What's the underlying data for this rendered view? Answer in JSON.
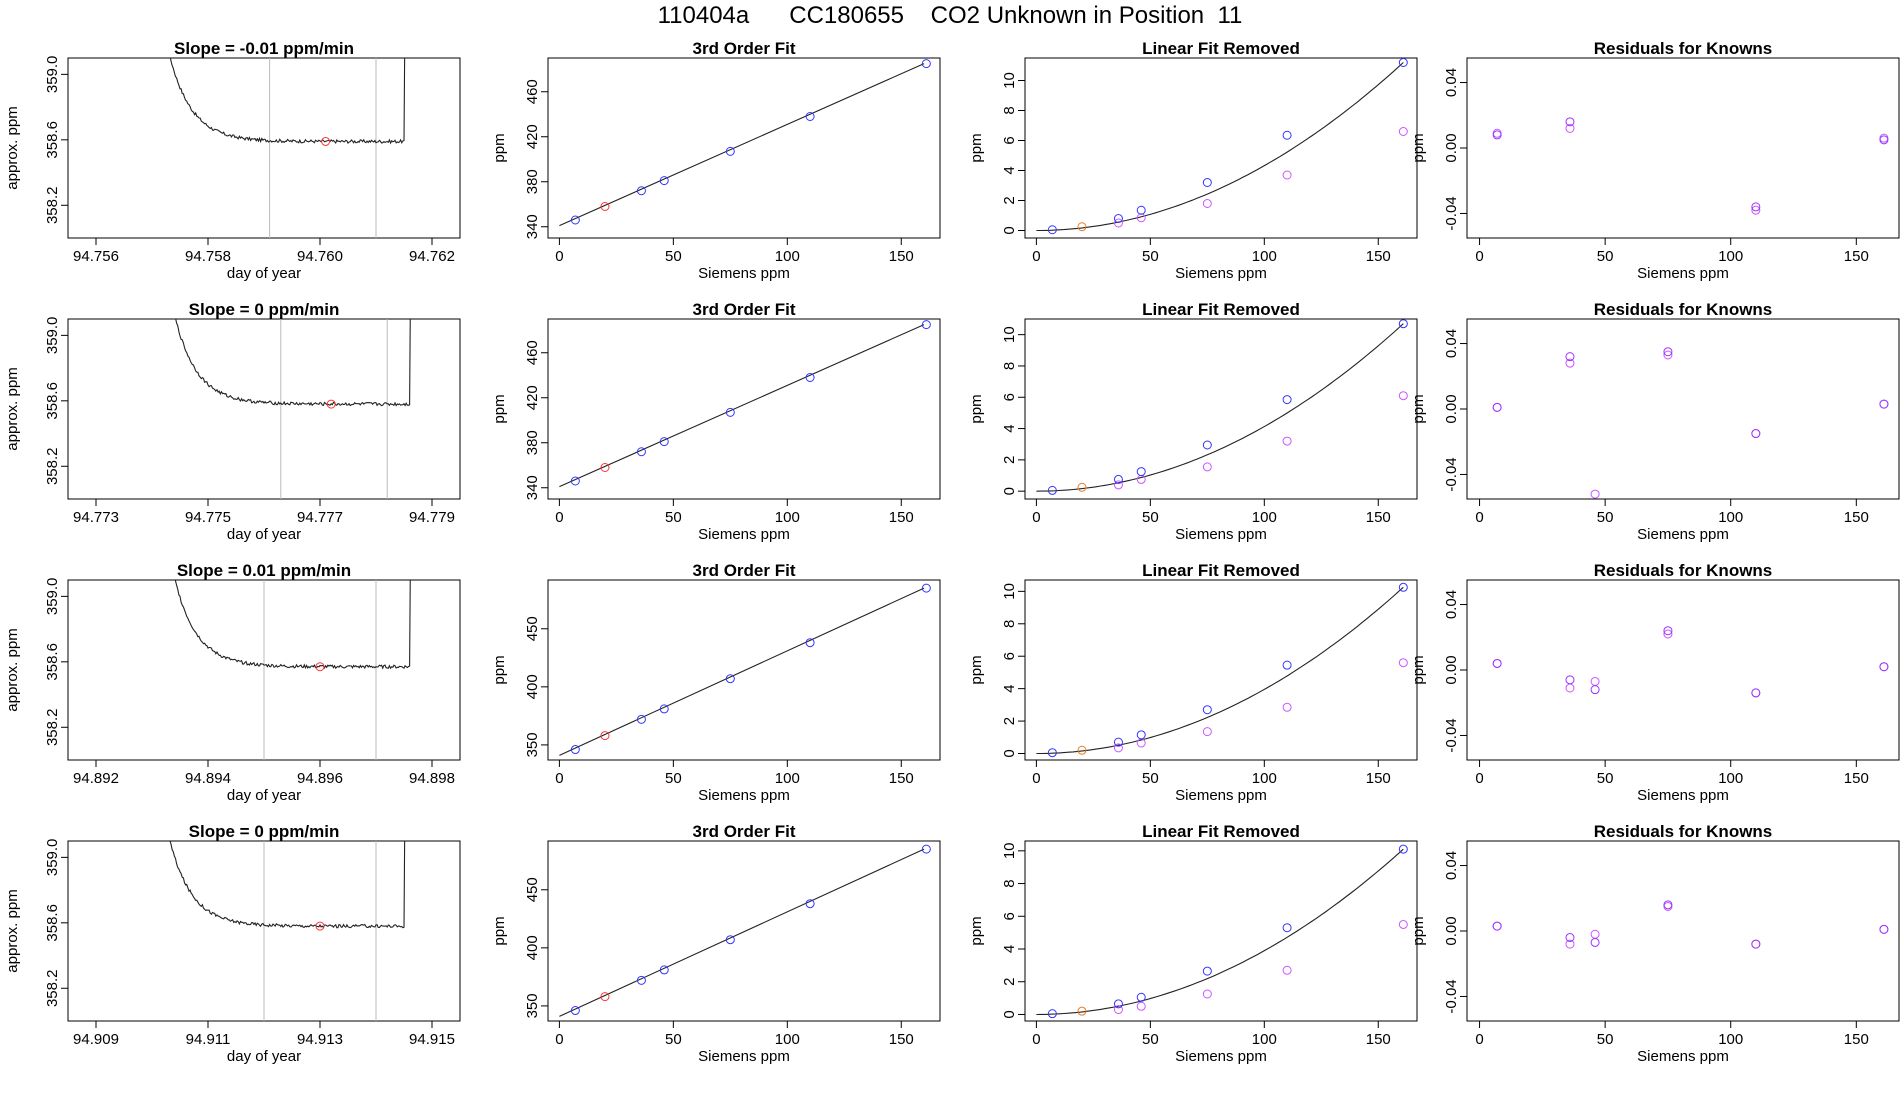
{
  "title": "110404a      CC180655    CO2 Unknown in Position  11",
  "colors": {
    "line": "#222222",
    "known": "#3333ff",
    "unknown_fit": "#ff3333",
    "unknown_lin": "#e87c1e",
    "residual": "#9933ff",
    "removed": "#cc55ff",
    "gridline": "#bbbbbb"
  },
  "chart_data": [
    {
      "type": "line",
      "row": 0,
      "col": 0,
      "title": "Slope =  -0.01  ppm/min",
      "xlabel": "day of year",
      "ylabel": "approx. ppm",
      "xlim": [
        94.7555,
        94.7625
      ],
      "ylim": [
        358.0,
        359.1
      ],
      "xticks": [
        94.756,
        94.758,
        94.76,
        94.762
      ],
      "xticklabels": [
        "94.756",
        "94.758",
        "94.760",
        "94.762"
      ],
      "yticks": [
        358.2,
        358.6,
        359.0
      ],
      "yticklabels": [
        "358.2",
        "358.6",
        "359.0"
      ],
      "start_x": 94.7571,
      "end_x": 94.7615,
      "level": 358.59,
      "vlines": [
        94.7591,
        94.761
      ],
      "marker": {
        "x": 94.7601,
        "y": 358.59
      }
    },
    {
      "type": "scatter",
      "row": 0,
      "col": 1,
      "title": "3rd Order Fit",
      "xlabel": "Siemens ppm",
      "ylabel": "ppm",
      "xlim": [
        -5,
        167
      ],
      "ylim": [
        330,
        490
      ],
      "xticks": [
        0,
        50,
        100,
        150
      ],
      "xticklabels": [
        "0",
        "50",
        "100",
        "150"
      ],
      "yticks": [
        340,
        380,
        420,
        460
      ],
      "yticklabels": [
        "340",
        "380",
        "420",
        "460"
      ],
      "line": [
        [
          0,
          341
        ],
        [
          160,
          485
        ]
      ],
      "known": [
        [
          7,
          346
        ],
        [
          36,
          372
        ],
        [
          46,
          381
        ],
        [
          75,
          407
        ],
        [
          110,
          438
        ],
        [
          161,
          485
        ]
      ],
      "unknown": [
        [
          20,
          358
        ]
      ]
    },
    {
      "type": "scatter",
      "row": 0,
      "col": 2,
      "title": "Linear Fit Removed",
      "xlabel": "Siemens ppm",
      "ylabel": "ppm",
      "xlim": [
        -5,
        167
      ],
      "ylim": [
        -0.5,
        11.5
      ],
      "xticks": [
        0,
        50,
        100,
        150
      ],
      "xticklabels": [
        "0",
        "50",
        "100",
        "150"
      ],
      "yticks": [
        0,
        2,
        4,
        6,
        8,
        10
      ],
      "yticklabels": [
        "0",
        "2",
        "4",
        "6",
        "8",
        "10"
      ],
      "curve_end": [
        161,
        11.2
      ],
      "known": [
        [
          7,
          0.05
        ],
        [
          36,
          0.8
        ],
        [
          46,
          1.35
        ],
        [
          75,
          3.2
        ],
        [
          110,
          6.35
        ],
        [
          161,
          11.2
        ]
      ],
      "removed": [
        [
          36,
          0.5
        ],
        [
          46,
          0.85
        ],
        [
          75,
          1.8
        ],
        [
          110,
          3.7
        ],
        [
          161,
          6.6
        ]
      ],
      "unknown": [
        [
          20,
          0.25
        ]
      ]
    },
    {
      "type": "scatter",
      "row": 0,
      "col": 3,
      "title": "Residuals for Knowns",
      "xlabel": "Siemens ppm",
      "ylabel": "ppm",
      "xlim": [
        -5,
        167
      ],
      "ylim": [
        -0.055,
        0.055
      ],
      "xticks": [
        0,
        50,
        100,
        150
      ],
      "xticklabels": [
        "0",
        "50",
        "100",
        "150"
      ],
      "yticks": [
        -0.04,
        0.0,
        0.04
      ],
      "yticklabels": [
        "-0.04",
        "0.00",
        "0.04"
      ],
      "residual": [
        [
          7,
          0.008
        ],
        [
          36,
          0.016
        ],
        [
          110,
          -0.036
        ],
        [
          161,
          0.005
        ]
      ],
      "removed": [
        [
          7,
          0.009
        ],
        [
          36,
          0.012
        ],
        [
          110,
          -0.038
        ],
        [
          161,
          0.006
        ]
      ]
    },
    {
      "type": "line",
      "row": 1,
      "col": 0,
      "title": "Slope =  0  ppm/min",
      "xlabel": "day of year",
      "ylabel": "approx. ppm",
      "xlim": [
        94.7725,
        94.7795
      ],
      "ylim": [
        358.0,
        359.1
      ],
      "xticks": [
        94.773,
        94.775,
        94.777,
        94.779
      ],
      "xticklabels": [
        "94.773",
        "94.775",
        "94.777",
        "94.779"
      ],
      "yticks": [
        358.2,
        358.6,
        359.0
      ],
      "yticklabels": [
        "358.2",
        "358.6",
        "359.0"
      ],
      "start_x": 94.7742,
      "end_x": 94.7786,
      "level": 358.58,
      "vlines": [
        94.7763,
        94.7782
      ],
      "marker": {
        "x": 94.7772,
        "y": 358.58
      }
    },
    {
      "type": "scatter",
      "row": 1,
      "col": 1,
      "title": "3rd Order Fit",
      "xlabel": "Siemens ppm",
      "ylabel": "ppm",
      "xlim": [
        -5,
        167
      ],
      "ylim": [
        330,
        490
      ],
      "xticks": [
        0,
        50,
        100,
        150
      ],
      "xticklabels": [
        "0",
        "50",
        "100",
        "150"
      ],
      "yticks": [
        340,
        380,
        420,
        460
      ],
      "yticklabels": [
        "340",
        "380",
        "420",
        "460"
      ],
      "line": [
        [
          0,
          341
        ],
        [
          160,
          485
        ]
      ],
      "known": [
        [
          7,
          346
        ],
        [
          36,
          372
        ],
        [
          46,
          381
        ],
        [
          75,
          407
        ],
        [
          110,
          438
        ],
        [
          161,
          485
        ]
      ],
      "unknown": [
        [
          20,
          358
        ]
      ]
    },
    {
      "type": "scatter",
      "row": 1,
      "col": 2,
      "title": "Linear Fit Removed",
      "xlabel": "Siemens ppm",
      "ylabel": "ppm",
      "xlim": [
        -5,
        167
      ],
      "ylim": [
        -0.5,
        11
      ],
      "xticks": [
        0,
        50,
        100,
        150
      ],
      "xticklabels": [
        "0",
        "50",
        "100",
        "150"
      ],
      "yticks": [
        0,
        2,
        4,
        6,
        8,
        10
      ],
      "yticklabels": [
        "0",
        "2",
        "4",
        "6",
        "8",
        "10"
      ],
      "curve_end": [
        161,
        10.7
      ],
      "known": [
        [
          7,
          0.05
        ],
        [
          36,
          0.75
        ],
        [
          46,
          1.25
        ],
        [
          75,
          2.95
        ],
        [
          110,
          5.85
        ],
        [
          161,
          10.7
        ]
      ],
      "removed": [
        [
          36,
          0.4
        ],
        [
          46,
          0.75
        ],
        [
          75,
          1.55
        ],
        [
          110,
          3.2
        ],
        [
          161,
          6.1
        ]
      ],
      "unknown": [
        [
          20,
          0.25
        ]
      ]
    },
    {
      "type": "scatter",
      "row": 1,
      "col": 3,
      "title": "Residuals for Knowns",
      "xlabel": "Siemens ppm",
      "ylabel": "ppm",
      "xlim": [
        -5,
        167
      ],
      "ylim": [
        -0.055,
        0.055
      ],
      "xticks": [
        0,
        50,
        100,
        150
      ],
      "xticklabels": [
        "0",
        "50",
        "100",
        "150"
      ],
      "yticks": [
        -0.04,
        0.0,
        0.04
      ],
      "yticklabels": [
        "-0.04",
        "0.00",
        "0.04"
      ],
      "residual": [
        [
          7,
          0.001
        ],
        [
          36,
          0.032
        ],
        [
          75,
          0.035
        ],
        [
          110,
          -0.015
        ],
        [
          161,
          0.003
        ]
      ],
      "removed": [
        [
          7,
          0.001
        ],
        [
          36,
          0.028
        ],
        [
          46,
          -0.052
        ],
        [
          75,
          0.033
        ],
        [
          110,
          -0.015
        ],
        [
          161,
          0.003
        ]
      ]
    },
    {
      "type": "line",
      "row": 2,
      "col": 0,
      "title": "Slope =  0.01  ppm/min",
      "xlabel": "day of year",
      "ylabel": "approx. ppm",
      "xlim": [
        94.8915,
        94.8985
      ],
      "ylim": [
        358.0,
        359.1
      ],
      "xticks": [
        94.892,
        94.894,
        94.896,
        94.898
      ],
      "xticklabels": [
        "94.892",
        "94.894",
        "94.896",
        "94.898"
      ],
      "yticks": [
        358.2,
        358.6,
        359.0
      ],
      "yticklabels": [
        "358.2",
        "358.6",
        "359.0"
      ],
      "start_x": 94.8932,
      "end_x": 94.8976,
      "level": 358.57,
      "vlines": [
        94.895,
        94.897
      ],
      "marker": {
        "x": 94.896,
        "y": 358.57
      }
    },
    {
      "type": "scatter",
      "row": 2,
      "col": 1,
      "title": "3rd Order Fit",
      "xlabel": "Siemens ppm",
      "ylabel": "ppm",
      "xlim": [
        -5,
        167
      ],
      "ylim": [
        337,
        492
      ],
      "xticks": [
        0,
        50,
        100,
        150
      ],
      "xticklabels": [
        "0",
        "50",
        "100",
        "150"
      ],
      "yticks": [
        350,
        400,
        450
      ],
      "yticklabels": [
        "350",
        "400",
        "450"
      ],
      "line": [
        [
          0,
          341
        ],
        [
          160,
          485
        ]
      ],
      "known": [
        [
          7,
          346
        ],
        [
          36,
          372
        ],
        [
          46,
          381
        ],
        [
          75,
          407
        ],
        [
          110,
          438
        ],
        [
          161,
          485
        ]
      ],
      "unknown": [
        [
          20,
          358
        ]
      ]
    },
    {
      "type": "scatter",
      "row": 2,
      "col": 2,
      "title": "Linear Fit Removed",
      "xlabel": "Siemens ppm",
      "ylabel": "ppm",
      "xlim": [
        -5,
        167
      ],
      "ylim": [
        -0.4,
        10.7
      ],
      "xticks": [
        0,
        50,
        100,
        150
      ],
      "xticklabels": [
        "0",
        "50",
        "100",
        "150"
      ],
      "yticks": [
        0,
        2,
        4,
        6,
        8,
        10
      ],
      "yticklabels": [
        "0",
        "2",
        "4",
        "6",
        "8",
        "10"
      ],
      "curve_end": [
        161,
        10.25
      ],
      "known": [
        [
          7,
          0.05
        ],
        [
          36,
          0.7
        ],
        [
          46,
          1.15
        ],
        [
          75,
          2.7
        ],
        [
          110,
          5.45
        ],
        [
          161,
          10.25
        ]
      ],
      "removed": [
        [
          36,
          0.35
        ],
        [
          46,
          0.65
        ],
        [
          75,
          1.35
        ],
        [
          110,
          2.85
        ],
        [
          161,
          5.6
        ]
      ],
      "unknown": [
        [
          20,
          0.2
        ]
      ]
    },
    {
      "type": "scatter",
      "row": 2,
      "col": 3,
      "title": "Residuals for Knowns",
      "xlabel": "Siemens ppm",
      "ylabel": "ppm",
      "xlim": [
        -5,
        167
      ],
      "ylim": [
        -0.055,
        0.055
      ],
      "xticks": [
        0,
        50,
        100,
        150
      ],
      "xticklabels": [
        "0",
        "50",
        "100",
        "150"
      ],
      "yticks": [
        -0.04,
        0.0,
        0.04
      ],
      "yticklabels": [
        "-0.04",
        "0.00",
        "0.04"
      ],
      "residual": [
        [
          7,
          0.004
        ],
        [
          36,
          -0.006
        ],
        [
          46,
          -0.012
        ],
        [
          75,
          0.024
        ],
        [
          110,
          -0.014
        ],
        [
          161,
          0.002
        ]
      ],
      "removed": [
        [
          7,
          0.004
        ],
        [
          36,
          -0.011
        ],
        [
          46,
          -0.007
        ],
        [
          75,
          0.022
        ],
        [
          110,
          -0.014
        ],
        [
          161,
          0.002
        ]
      ]
    },
    {
      "type": "line",
      "row": 3,
      "col": 0,
      "title": "Slope =  0  ppm/min",
      "xlabel": "day of year",
      "ylabel": "approx. ppm",
      "xlim": [
        94.9085,
        94.9155
      ],
      "ylim": [
        358.0,
        359.1
      ],
      "xticks": [
        94.909,
        94.911,
        94.913,
        94.915
      ],
      "xticklabels": [
        "94.909",
        "94.911",
        "94.913",
        "94.915"
      ],
      "yticks": [
        358.2,
        358.6,
        359.0
      ],
      "yticklabels": [
        "358.2",
        "358.6",
        "359.0"
      ],
      "start_x": 94.9101,
      "end_x": 94.9145,
      "level": 358.58,
      "vlines": [
        94.912,
        94.914
      ],
      "marker": {
        "x": 94.913,
        "y": 358.58
      }
    },
    {
      "type": "scatter",
      "row": 3,
      "col": 1,
      "title": "3rd Order Fit",
      "xlabel": "Siemens ppm",
      "ylabel": "ppm",
      "xlim": [
        -5,
        167
      ],
      "ylim": [
        337,
        492
      ],
      "xticks": [
        0,
        50,
        100,
        150
      ],
      "xticklabels": [
        "0",
        "50",
        "100",
        "150"
      ],
      "yticks": [
        350,
        400,
        450
      ],
      "yticklabels": [
        "350",
        "400",
        "450"
      ],
      "line": [
        [
          0,
          341
        ],
        [
          160,
          485
        ]
      ],
      "known": [
        [
          7,
          346
        ],
        [
          36,
          372
        ],
        [
          46,
          381
        ],
        [
          75,
          407
        ],
        [
          110,
          438
        ],
        [
          161,
          485
        ]
      ],
      "unknown": [
        [
          20,
          358
        ]
      ]
    },
    {
      "type": "scatter",
      "row": 3,
      "col": 2,
      "title": "Linear Fit Removed",
      "xlabel": "Siemens ppm",
      "ylabel": "ppm",
      "xlim": [
        -5,
        167
      ],
      "ylim": [
        -0.4,
        10.6
      ],
      "xticks": [
        0,
        50,
        100,
        150
      ],
      "xticklabels": [
        "0",
        "50",
        "100",
        "150"
      ],
      "yticks": [
        0,
        2,
        4,
        6,
        8,
        10
      ],
      "yticklabels": [
        "0",
        "2",
        "4",
        "6",
        "8",
        "10"
      ],
      "curve_end": [
        161,
        10.1
      ],
      "known": [
        [
          7,
          0.05
        ],
        [
          36,
          0.65
        ],
        [
          46,
          1.05
        ],
        [
          75,
          2.65
        ],
        [
          110,
          5.3
        ],
        [
          161,
          10.1
        ]
      ],
      "removed": [
        [
          36,
          0.3
        ],
        [
          46,
          0.5
        ],
        [
          75,
          1.25
        ],
        [
          110,
          2.7
        ],
        [
          161,
          5.5
        ]
      ],
      "unknown": [
        [
          20,
          0.2
        ]
      ]
    },
    {
      "type": "scatter",
      "row": 3,
      "col": 3,
      "title": "Residuals for Knowns",
      "xlabel": "Siemens ppm",
      "ylabel": "ppm",
      "xlim": [
        -5,
        167
      ],
      "ylim": [
        -0.055,
        0.055
      ],
      "xticks": [
        0,
        50,
        100,
        150
      ],
      "xticklabels": [
        "0",
        "50",
        "100",
        "150"
      ],
      "yticks": [
        -0.04,
        0.0,
        0.04
      ],
      "yticklabels": [
        "-0.04",
        "0.00",
        "0.04"
      ],
      "residual": [
        [
          7,
          0.003
        ],
        [
          36,
          -0.004
        ],
        [
          46,
          -0.007
        ],
        [
          75,
          0.016
        ],
        [
          110,
          -0.008
        ],
        [
          161,
          0.001
        ]
      ],
      "removed": [
        [
          7,
          0.003
        ],
        [
          36,
          -0.008
        ],
        [
          46,
          -0.002
        ],
        [
          75,
          0.015
        ],
        [
          110,
          -0.008
        ],
        [
          161,
          0.001
        ]
      ]
    }
  ]
}
